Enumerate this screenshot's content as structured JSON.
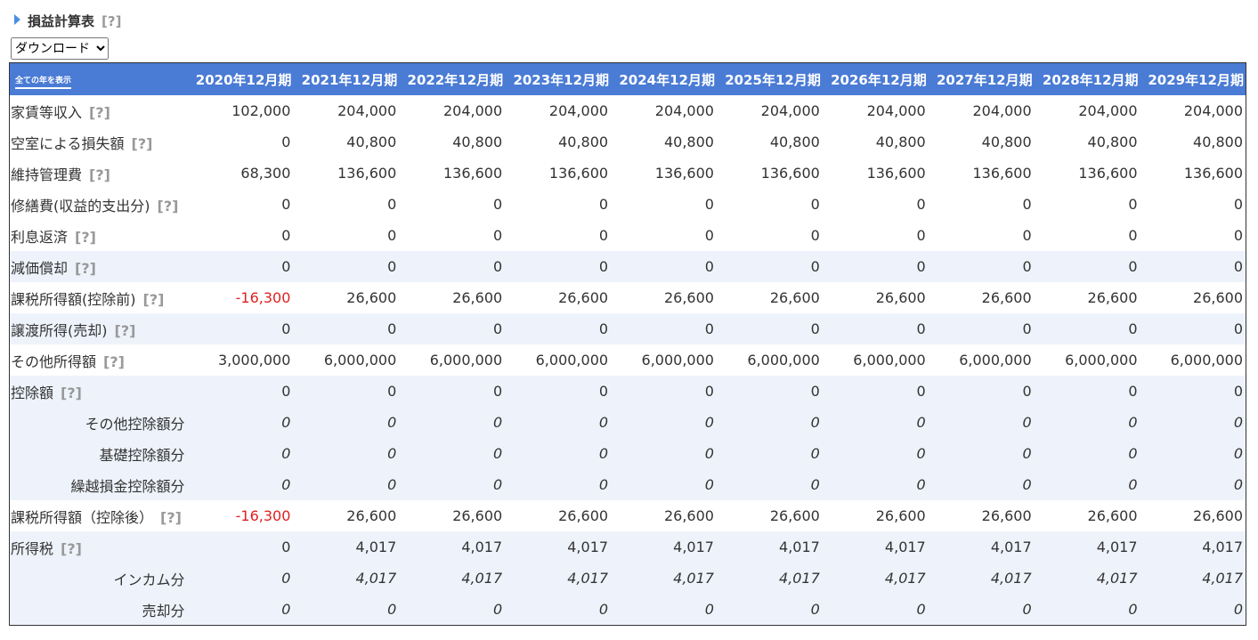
{
  "header": {
    "title": "損益計算表",
    "help": "[?]",
    "select": "ダウンロード"
  },
  "table": {
    "corner": "全ての年を表示",
    "columns": [
      "2020年12月期",
      "2021年12月期",
      "2022年12月期",
      "2023年12月期",
      "2024年12月期",
      "2025年12月期",
      "2026年12月期",
      "2027年12月期",
      "2028年12月期",
      "2029年12月期"
    ],
    "rows": [
      {
        "label": "家賃等収入",
        "help": "[?]",
        "values": [
          "102,000",
          "204,000",
          "204,000",
          "204,000",
          "204,000",
          "204,000",
          "204,000",
          "204,000",
          "204,000",
          "204,000"
        ]
      },
      {
        "label": "空室による損失額",
        "help": "[?]",
        "values": [
          "0",
          "40,800",
          "40,800",
          "40,800",
          "40,800",
          "40,800",
          "40,800",
          "40,800",
          "40,800",
          "40,800"
        ]
      },
      {
        "label": "維持管理費",
        "help": "[?]",
        "values": [
          "68,300",
          "136,600",
          "136,600",
          "136,600",
          "136,600",
          "136,600",
          "136,600",
          "136,600",
          "136,600",
          "136,600"
        ]
      },
      {
        "label": "修繕費(収益的支出分)",
        "help": "[?]",
        "values": [
          "0",
          "0",
          "0",
          "0",
          "0",
          "0",
          "0",
          "0",
          "0",
          "0"
        ]
      },
      {
        "label": "利息返済",
        "help": "[?]",
        "values": [
          "0",
          "0",
          "0",
          "0",
          "0",
          "0",
          "0",
          "0",
          "0",
          "0"
        ]
      },
      {
        "label": "減価償却",
        "help": "[?]",
        "values": [
          "0",
          "0",
          "0",
          "0",
          "0",
          "0",
          "0",
          "0",
          "0",
          "0"
        ]
      },
      {
        "label": "課税所得額(控除前)",
        "help": "[?]",
        "values": [
          "-16,300",
          "26,600",
          "26,600",
          "26,600",
          "26,600",
          "26,600",
          "26,600",
          "26,600",
          "26,600",
          "26,600"
        ]
      },
      {
        "label": "譲渡所得(売却)",
        "help": "[?]",
        "values": [
          "0",
          "0",
          "0",
          "0",
          "0",
          "0",
          "0",
          "0",
          "0",
          "0"
        ]
      },
      {
        "label": "その他所得額",
        "help": "[?]",
        "values": [
          "3,000,000",
          "6,000,000",
          "6,000,000",
          "6,000,000",
          "6,000,000",
          "6,000,000",
          "6,000,000",
          "6,000,000",
          "6,000,000",
          "6,000,000"
        ]
      },
      {
        "label": "控除額",
        "help": "[?]",
        "values": [
          "0",
          "0",
          "0",
          "0",
          "0",
          "0",
          "0",
          "0",
          "0",
          "0"
        ]
      },
      {
        "label": "その他控除額分",
        "values": [
          "0",
          "0",
          "0",
          "0",
          "0",
          "0",
          "0",
          "0",
          "0",
          "0"
        ]
      },
      {
        "label": "基礎控除額分",
        "values": [
          "0",
          "0",
          "0",
          "0",
          "0",
          "0",
          "0",
          "0",
          "0",
          "0"
        ]
      },
      {
        "label": "繰越損金控除額分",
        "values": [
          "0",
          "0",
          "0",
          "0",
          "0",
          "0",
          "0",
          "0",
          "0",
          "0"
        ]
      },
      {
        "label": "課税所得額（控除後）",
        "help": "[?]",
        "values": [
          "-16,300",
          "26,600",
          "26,600",
          "26,600",
          "26,600",
          "26,600",
          "26,600",
          "26,600",
          "26,600",
          "26,600"
        ]
      },
      {
        "label": "所得税",
        "help": "[?]",
        "values": [
          "0",
          "4,017",
          "4,017",
          "4,017",
          "4,017",
          "4,017",
          "4,017",
          "4,017",
          "4,017",
          "4,017"
        ]
      },
      {
        "label": "インカム分",
        "values": [
          "0",
          "4,017",
          "4,017",
          "4,017",
          "4,017",
          "4,017",
          "4,017",
          "4,017",
          "4,017",
          "4,017"
        ]
      },
      {
        "label": "売却分",
        "values": [
          "0",
          "0",
          "0",
          "0",
          "0",
          "0",
          "0",
          "0",
          "0",
          "0"
        ]
      }
    ]
  }
}
